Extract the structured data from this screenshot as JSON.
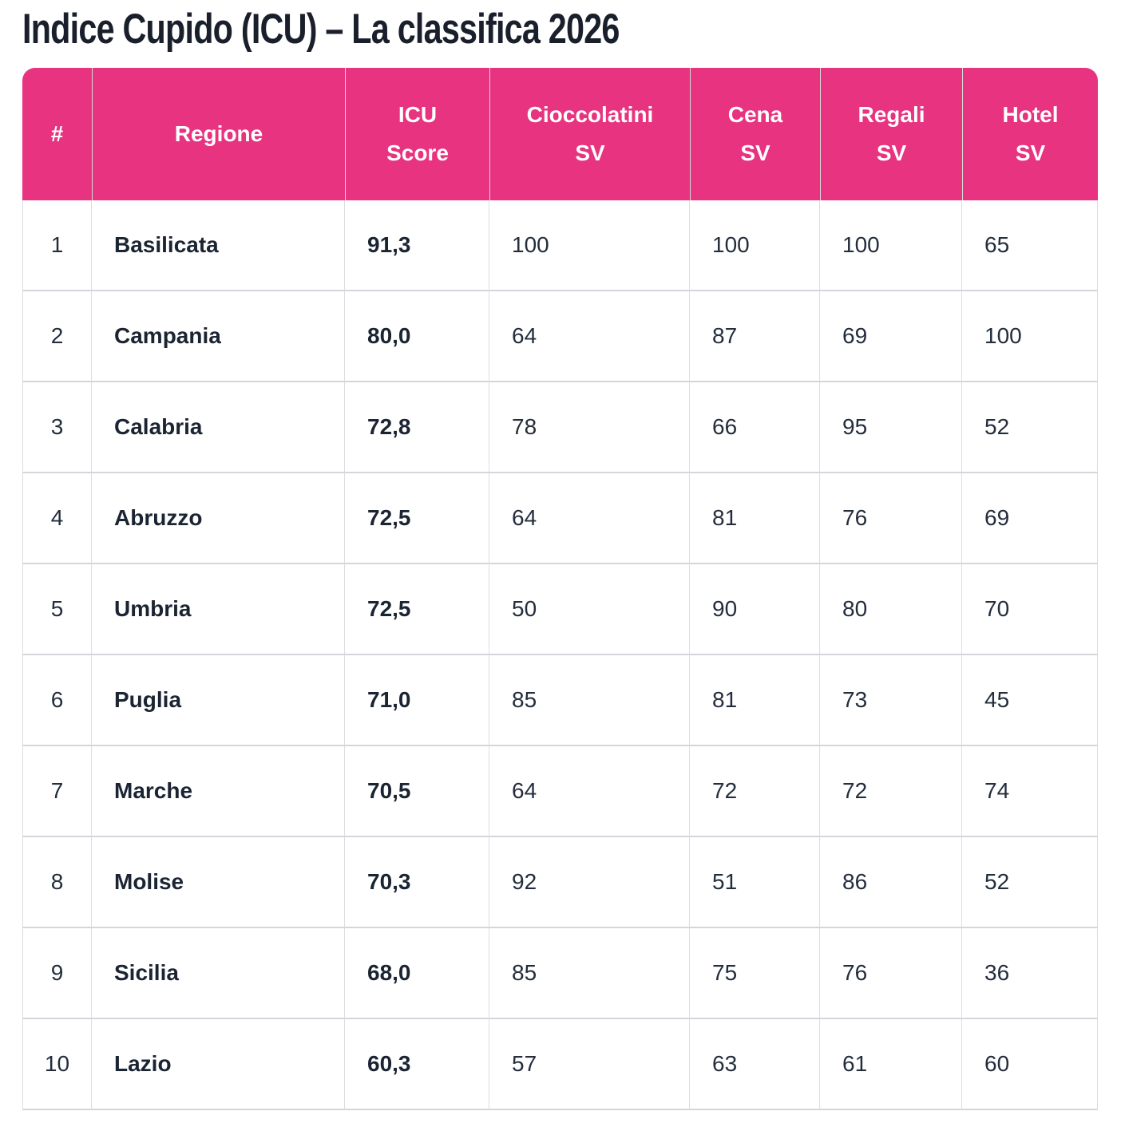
{
  "page_title": "Indice Cupido (ICU) – La classifica 2026",
  "table": {
    "columns": [
      {
        "key": "rank",
        "label": "#"
      },
      {
        "key": "region",
        "label": "Regione"
      },
      {
        "key": "icu",
        "label": "ICU\nScore"
      },
      {
        "key": "cioccolatini",
        "label": "Cioccolatini\nSV"
      },
      {
        "key": "cena",
        "label": "Cena\nSV"
      },
      {
        "key": "regali",
        "label": "Regali\nSV"
      },
      {
        "key": "hotel",
        "label": "Hotel\nSV"
      }
    ],
    "rows": [
      {
        "rank": "1",
        "region": "Basilicata",
        "icu": "91,3",
        "cioccolatini": "100",
        "cena": "100",
        "regali": "100",
        "hotel": "65"
      },
      {
        "rank": "2",
        "region": "Campania",
        "icu": "80,0",
        "cioccolatini": "64",
        "cena": "87",
        "regali": "69",
        "hotel": "100"
      },
      {
        "rank": "3",
        "region": "Calabria",
        "icu": "72,8",
        "cioccolatini": "78",
        "cena": "66",
        "regali": "95",
        "hotel": "52"
      },
      {
        "rank": "4",
        "region": "Abruzzo",
        "icu": "72,5",
        "cioccolatini": "64",
        "cena": "81",
        "regali": "76",
        "hotel": "69"
      },
      {
        "rank": "5",
        "region": "Umbria",
        "icu": "72,5",
        "cioccolatini": "50",
        "cena": "90",
        "regali": "80",
        "hotel": "70"
      },
      {
        "rank": "6",
        "region": "Puglia",
        "icu": "71,0",
        "cioccolatini": "85",
        "cena": "81",
        "regali": "73",
        "hotel": "45"
      },
      {
        "rank": "7",
        "region": "Marche",
        "icu": "70,5",
        "cioccolatini": "64",
        "cena": "72",
        "regali": "72",
        "hotel": "74"
      },
      {
        "rank": "8",
        "region": "Molise",
        "icu": "70,3",
        "cioccolatini": "92",
        "cena": "51",
        "regali": "86",
        "hotel": "52"
      },
      {
        "rank": "9",
        "region": "Sicilia",
        "icu": "68,0",
        "cioccolatini": "85",
        "cena": "75",
        "regali": "76",
        "hotel": "36"
      },
      {
        "rank": "10",
        "region": "Lazio",
        "icu": "60,3",
        "cioccolatini": "57",
        "cena": "63",
        "regali": "61",
        "hotel": "60"
      }
    ]
  },
  "colors": {
    "header_bg": "#E73380",
    "header_text": "#FFFFFF",
    "body_text": "#232D3C",
    "emphasis_text": "#1B2432",
    "border_vertical": "#DBDDDF",
    "border_horizontal": "#D3D6DA",
    "title_text": "#191F2B"
  }
}
